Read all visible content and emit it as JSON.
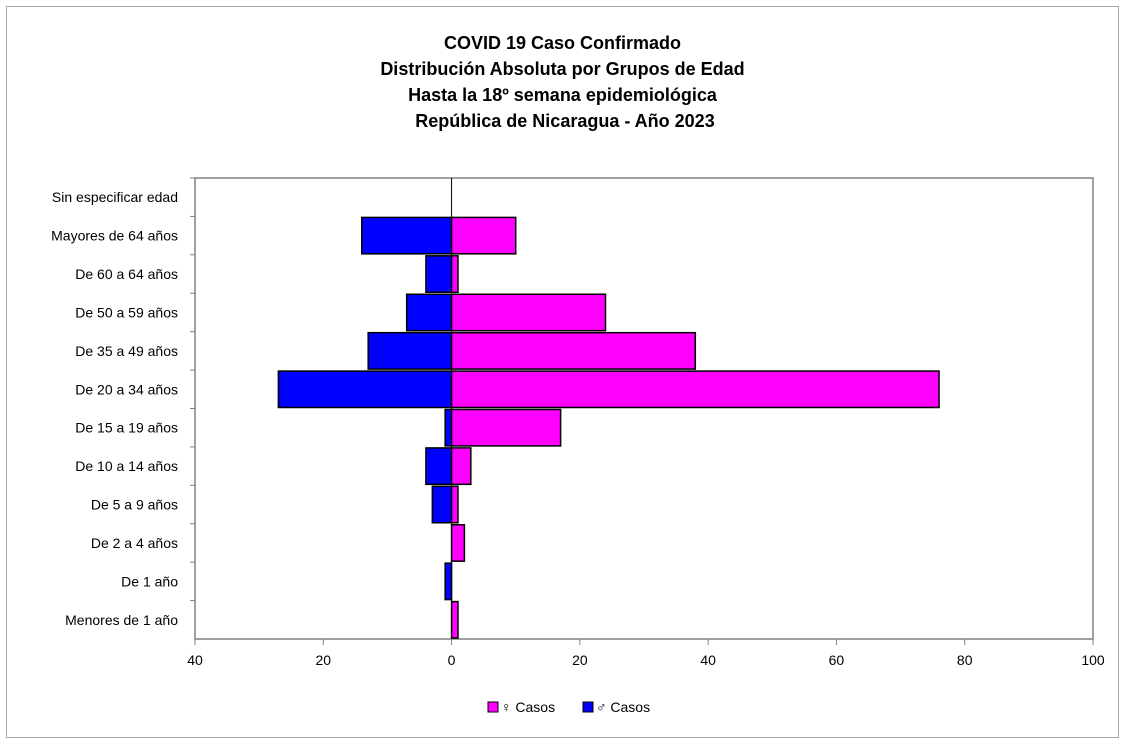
{
  "chart_data": {
    "type": "bar",
    "orientation": "horizontal",
    "layout": "population-pyramid",
    "title_lines": [
      "COVID 19 Caso Confirmado",
      "Distribución Absoluta por Grupos de Edad",
      "Hasta la 18º semana epidemiológica",
      " República de Nicaragua - Año 2023"
    ],
    "categories": [
      "Sin especificar edad",
      "Mayores de 64 años",
      "De 60 a 64 años",
      "De 50 a 59 años",
      "De 35 a 49 años",
      "De 20 a 34 años",
      "De 15 a 19 años",
      "De 10 a 14 años",
      "De 5 a 9 años",
      "De 2 a 4 años",
      "De 1 año",
      "Menores de 1 año"
    ],
    "series": [
      {
        "name": "♀ Casos",
        "color": "#ff00ff",
        "values": [
          0,
          10,
          1,
          24,
          38,
          76,
          17,
          3,
          1,
          2,
          0,
          1
        ]
      },
      {
        "name": "♂ Casos",
        "color": "#0000ff",
        "values": [
          0,
          14,
          4,
          7,
          13,
          27,
          1,
          4,
          3,
          0,
          1,
          0
        ]
      }
    ],
    "xlim": [
      -40,
      100
    ],
    "xticks": [
      -40,
      -20,
      0,
      20,
      40,
      60,
      80,
      100
    ],
    "xtick_labels": [
      "40",
      "20",
      "0",
      "20",
      "40",
      "60",
      "80",
      "100"
    ],
    "grid": false,
    "legend_position": "bottom"
  }
}
